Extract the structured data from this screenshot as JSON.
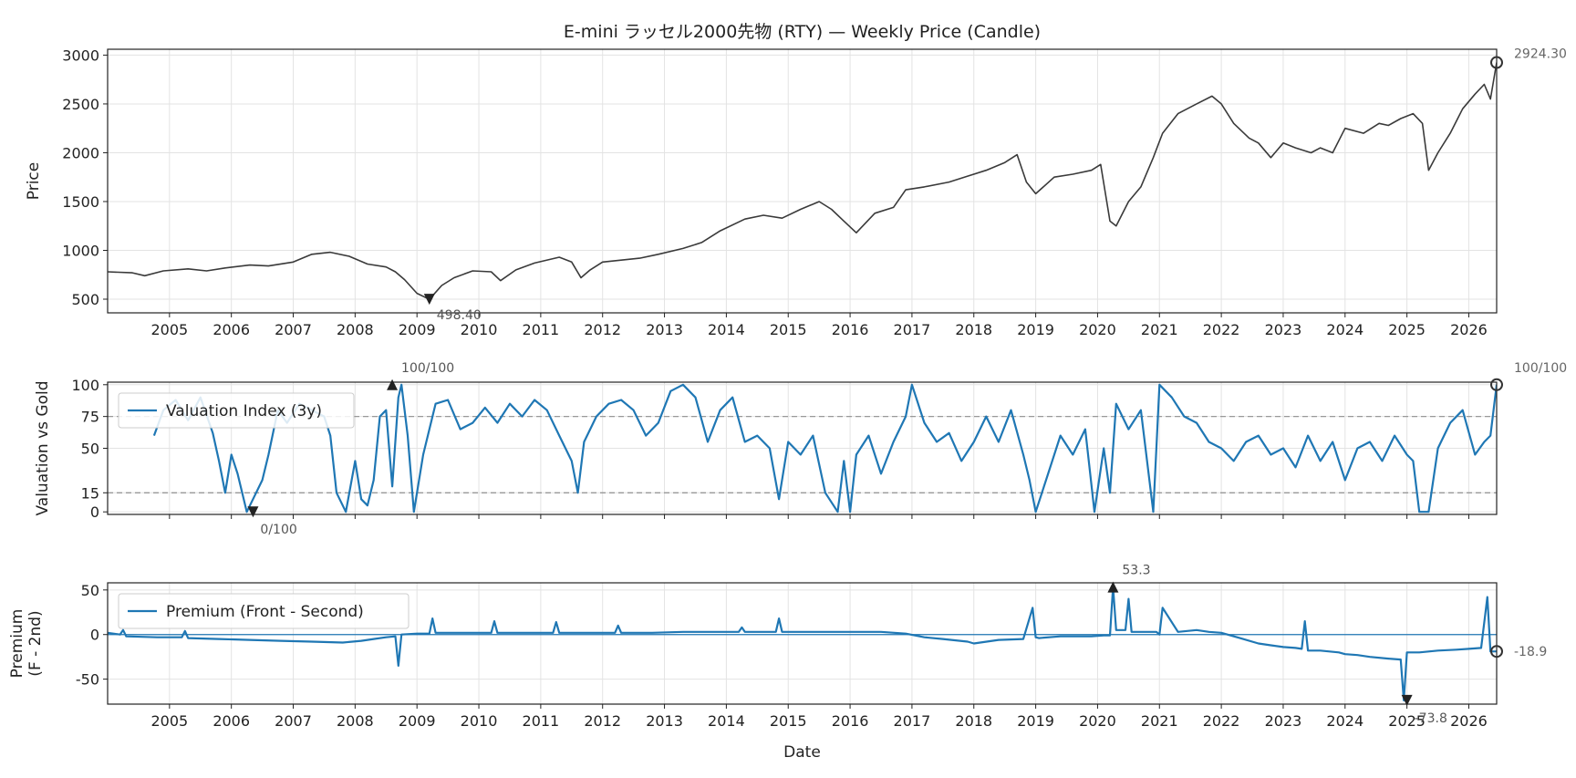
{
  "chart_data": [
    {
      "type": "line",
      "title": "E-mini ラッセル2000先物 (RTY) — Weekly Price (Candle)",
      "ylabel": "Price",
      "xlabel": "",
      "xlim": [
        2004.0,
        2026.45
      ],
      "ylim": [
        360,
        3060
      ],
      "yticks": [
        500,
        1000,
        1500,
        2000,
        2500,
        3000
      ],
      "xtick_labels": [
        "2005",
        "2006",
        "2007",
        "2008",
        "2009",
        "2010",
        "2011",
        "2012",
        "2013",
        "2014",
        "2015",
        "2016",
        "2017",
        "2018",
        "2019",
        "2020",
        "2021",
        "2022",
        "2023",
        "2024",
        "2025",
        "2026"
      ],
      "grid": true,
      "series": [
        {
          "color": "#3a3a3a",
          "x": [
            2004.0,
            2004.4,
            2004.6,
            2004.9,
            2005.3,
            2005.6,
            2005.9,
            2006.3,
            2006.6,
            2007.0,
            2007.3,
            2007.6,
            2007.9,
            2008.2,
            2008.5,
            2008.65,
            2008.8,
            2009.0,
            2009.2,
            2009.4,
            2009.6,
            2009.9,
            2010.2,
            2010.35,
            2010.6,
            2010.9,
            2011.3,
            2011.5,
            2011.65,
            2011.8,
            2012.0,
            2012.3,
            2012.6,
            2012.9,
            2013.3,
            2013.6,
            2013.9,
            2014.3,
            2014.6,
            2014.9,
            2015.2,
            2015.5,
            2015.7,
            2015.9,
            2016.1,
            2016.4,
            2016.7,
            2016.9,
            2017.2,
            2017.6,
            2017.9,
            2018.2,
            2018.5,
            2018.7,
            2018.85,
            2019.0,
            2019.3,
            2019.6,
            2019.9,
            2020.05,
            2020.2,
            2020.3,
            2020.5,
            2020.7,
            2020.9,
            2021.05,
            2021.3,
            2021.6,
            2021.85,
            2022.0,
            2022.2,
            2022.45,
            2022.6,
            2022.8,
            2023.0,
            2023.2,
            2023.45,
            2023.6,
            2023.8,
            2024.0,
            2024.3,
            2024.55,
            2024.7,
            2024.9,
            2025.1,
            2025.25,
            2025.35,
            2025.5,
            2025.7,
            2025.9,
            2026.1,
            2026.25,
            2026.35,
            2026.45
          ],
          "y": [
            780,
            770,
            740,
            790,
            810,
            790,
            820,
            850,
            840,
            880,
            960,
            980,
            940,
            860,
            830,
            780,
            700,
            560,
            498.4,
            640,
            720,
            790,
            780,
            690,
            800,
            870,
            930,
            880,
            720,
            800,
            880,
            900,
            920,
            960,
            1020,
            1080,
            1200,
            1320,
            1360,
            1330,
            1420,
            1500,
            1420,
            1300,
            1180,
            1380,
            1440,
            1620,
            1650,
            1700,
            1760,
            1820,
            1900,
            1980,
            1700,
            1580,
            1750,
            1780,
            1820,
            1880,
            1300,
            1250,
            1500,
            1650,
            1950,
            2200,
            2400,
            2500,
            2580,
            2500,
            2300,
            2150,
            2100,
            1950,
            2100,
            2050,
            2000,
            2050,
            2000,
            2250,
            2200,
            2300,
            2280,
            2350,
            2400,
            2300,
            1820,
            2000,
            2200,
            2450,
            2600,
            2700,
            2550,
            2924.3
          ]
        }
      ],
      "annotations": [
        {
          "label": "498.40",
          "x": 2009.2,
          "y": 498.4,
          "marker": "triangle-down"
        },
        {
          "label": "2924.30",
          "x": 2026.45,
          "y": 2924.3,
          "marker": "circle"
        }
      ]
    },
    {
      "type": "line",
      "ylabel": "Valuation vs Gold",
      "xlim": [
        2004.0,
        2026.45
      ],
      "ylim": [
        -2,
        102
      ],
      "yticks": [
        0,
        15,
        50,
        75,
        100
      ],
      "reference_lines": [
        75,
        15
      ],
      "grid": true,
      "legend": {
        "placement": "top-left",
        "entries": [
          "Valuation Index (3y)"
        ]
      },
      "series": [
        {
          "name": "Valuation Index (3y)",
          "color": "#1f77b4",
          "x": [
            2004.75,
            2004.9,
            2005.1,
            2005.3,
            2005.5,
            2005.7,
            2005.8,
            2005.9,
            2006.0,
            2006.1,
            2006.25,
            2006.35,
            2006.5,
            2006.6,
            2006.75,
            2006.9,
            2007.1,
            2007.3,
            2007.5,
            2007.6,
            2007.7,
            2007.85,
            2008.0,
            2008.1,
            2008.2,
            2008.3,
            2008.4,
            2008.5,
            2008.6,
            2008.7,
            2008.75,
            2008.85,
            2008.95,
            2009.1,
            2009.3,
            2009.5,
            2009.7,
            2009.9,
            2010.1,
            2010.3,
            2010.5,
            2010.7,
            2010.9,
            2011.1,
            2011.3,
            2011.5,
            2011.6,
            2011.7,
            2011.9,
            2012.1,
            2012.3,
            2012.5,
            2012.7,
            2012.9,
            2013.1,
            2013.3,
            2013.5,
            2013.7,
            2013.9,
            2014.1,
            2014.3,
            2014.5,
            2014.7,
            2014.85,
            2015.0,
            2015.2,
            2015.4,
            2015.6,
            2015.8,
            2015.9,
            2016.0,
            2016.1,
            2016.3,
            2016.5,
            2016.7,
            2016.9,
            2017.0,
            2017.2,
            2017.4,
            2017.6,
            2017.8,
            2018.0,
            2018.2,
            2018.4,
            2018.6,
            2018.8,
            2018.9,
            2019.0,
            2019.2,
            2019.4,
            2019.6,
            2019.8,
            2019.95,
            2020.1,
            2020.2,
            2020.3,
            2020.5,
            2020.7,
            2020.9,
            2021.0,
            2021.2,
            2021.4,
            2021.6,
            2021.8,
            2022.0,
            2022.2,
            2022.4,
            2022.6,
            2022.8,
            2023.0,
            2023.2,
            2023.4,
            2023.6,
            2023.8,
            2024.0,
            2024.2,
            2024.4,
            2024.6,
            2024.8,
            2025.0,
            2025.1,
            2025.2,
            2025.35,
            2025.5,
            2025.7,
            2025.9,
            2026.1,
            2026.25,
            2026.35,
            2026.45
          ],
          "y": [
            60,
            80,
            88,
            72,
            90,
            62,
            40,
            15,
            45,
            30,
            0,
            10,
            25,
            45,
            80,
            70,
            85,
            80,
            75,
            60,
            15,
            0,
            40,
            10,
            5,
            25,
            75,
            80,
            20,
            90,
            100,
            60,
            0,
            45,
            85,
            88,
            65,
            70,
            82,
            70,
            85,
            75,
            88,
            80,
            60,
            40,
            15,
            55,
            75,
            85,
            88,
            80,
            60,
            70,
            95,
            100,
            90,
            55,
            80,
            90,
            55,
            60,
            50,
            10,
            55,
            45,
            60,
            15,
            0,
            40,
            0,
            45,
            60,
            30,
            55,
            75,
            100,
            70,
            55,
            62,
            40,
            55,
            75,
            55,
            80,
            45,
            25,
            0,
            30,
            60,
            45,
            65,
            0,
            50,
            15,
            85,
            65,
            80,
            0,
            100,
            90,
            75,
            70,
            55,
            50,
            40,
            55,
            60,
            45,
            50,
            35,
            60,
            40,
            55,
            25,
            50,
            55,
            40,
            60,
            45,
            40,
            0,
            0,
            50,
            70,
            80,
            45,
            55,
            60,
            100
          ]
        }
      ],
      "annotations": [
        {
          "label": "100/100",
          "x": 2008.6,
          "y": 100,
          "marker": "triangle-up"
        },
        {
          "label": "0/100",
          "x": 2006.35,
          "y": 0,
          "marker": "triangle-down"
        },
        {
          "label": "100/100",
          "x": 2026.45,
          "y": 100,
          "marker": "circle"
        }
      ]
    },
    {
      "type": "line",
      "ylabel": "Premium\n(F - 2nd)",
      "xlabel": "Date",
      "xlim": [
        2004.0,
        2026.45
      ],
      "ylim": [
        -78,
        58
      ],
      "yticks": [
        -50,
        0,
        50
      ],
      "xtick_labels": [
        "2005",
        "2006",
        "2007",
        "2008",
        "2009",
        "2010",
        "2011",
        "2012",
        "2013",
        "2014",
        "2015",
        "2016",
        "2017",
        "2018",
        "2019",
        "2020",
        "2021",
        "2022",
        "2023",
        "2024",
        "2025",
        "2026"
      ],
      "reference_lines": [
        0
      ],
      "grid": true,
      "legend": {
        "placement": "top-left",
        "entries": [
          "Premium (Front - Second)"
        ]
      },
      "series": [
        {
          "name": "Premium (Front - Second)",
          "color": "#1f77b4",
          "x": [
            2004.0,
            2004.2,
            2004.25,
            2004.3,
            2004.8,
            2005.2,
            2005.25,
            2005.3,
            2005.8,
            2006.3,
            2006.8,
            2007.3,
            2007.8,
            2008.1,
            2008.3,
            2008.5,
            2008.65,
            2008.7,
            2008.75,
            2009.0,
            2009.2,
            2009.25,
            2009.3,
            2009.7,
            2010.2,
            2010.25,
            2010.3,
            2010.9,
            2011.2,
            2011.25,
            2011.3,
            2012.0,
            2012.2,
            2012.25,
            2012.3,
            2012.8,
            2013.3,
            2013.7,
            2014.0,
            2014.2,
            2014.25,
            2014.3,
            2014.8,
            2014.85,
            2014.9,
            2015.5,
            2016.0,
            2016.5,
            2016.9,
            2017.2,
            2017.5,
            2017.9,
            2018.0,
            2018.4,
            2018.8,
            2018.95,
            2019.0,
            2019.05,
            2019.4,
            2019.9,
            2020.1,
            2020.2,
            2020.25,
            2020.3,
            2020.45,
            2020.5,
            2020.55,
            2020.7,
            2020.95,
            2021.0,
            2021.05,
            2021.3,
            2021.6,
            2021.8,
            2022.0,
            2022.3,
            2022.6,
            2022.8,
            2023.0,
            2023.2,
            2023.3,
            2023.35,
            2023.4,
            2023.6,
            2023.9,
            2024.0,
            2024.2,
            2024.4,
            2024.7,
            2024.9,
            2024.95,
            2025.0,
            2025.2,
            2025.5,
            2025.8,
            2026.0,
            2026.2,
            2026.3,
            2026.35,
            2026.45
          ],
          "y": [
            2,
            0,
            5,
            -2,
            -3,
            -3,
            4,
            -4,
            -5,
            -6,
            -7,
            -8,
            -9,
            -7,
            -5,
            -3,
            -2,
            -35,
            0,
            1,
            1,
            18,
            2,
            2,
            2,
            15,
            2,
            2,
            2,
            14,
            2,
            2,
            2,
            10,
            2,
            2,
            3,
            3,
            3,
            3,
            8,
            3,
            3,
            18,
            3,
            3,
            3,
            3,
            1,
            -3,
            -5,
            -8,
            -10,
            -6,
            -5,
            30,
            -3,
            -4,
            -2,
            -2,
            -1,
            -1,
            53.3,
            5,
            5,
            40,
            3,
            3,
            3,
            0,
            30,
            3,
            5,
            3,
            2,
            -4,
            -10,
            -12,
            -14,
            -15,
            -16,
            15,
            -18,
            -18,
            -20,
            -22,
            -23,
            -25,
            -27,
            -28,
            -73.8,
            -20,
            -20,
            -18,
            -17,
            -16,
            -15,
            42,
            -19,
            -18.9
          ]
        }
      ],
      "annotations": [
        {
          "label": "53.3",
          "x": 2020.25,
          "y": 53.3,
          "marker": "triangle-up"
        },
        {
          "label": "-73.8",
          "x": 2025.0,
          "y": -73.8,
          "marker": "triangle-down"
        },
        {
          "label": "-18.9",
          "x": 2026.45,
          "y": -18.9,
          "marker": "circle"
        }
      ]
    }
  ]
}
